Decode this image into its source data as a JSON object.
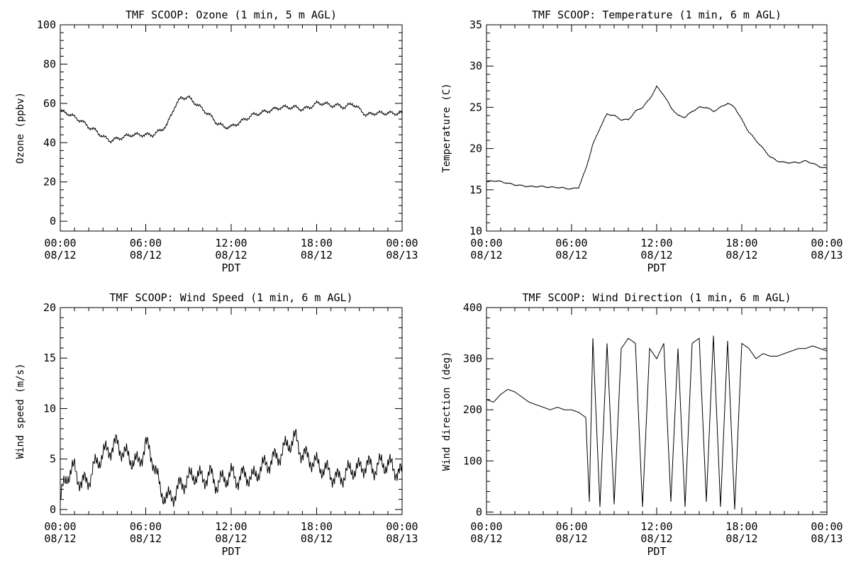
{
  "chart_data": [
    {
      "type": "line",
      "title": "TMF SCOOP: Ozone (1 min, 5 m AGL)",
      "ylabel": "Ozone (ppbv)",
      "xlabel": "PDT",
      "ylim": [
        -5,
        100
      ],
      "yticks": [
        0,
        20,
        40,
        60,
        80,
        100
      ],
      "xlim": [
        "2024-08-12 00:00",
        "2024-08-13 00:00"
      ],
      "xticks": [
        {
          "time": "00:00",
          "date": "08/12"
        },
        {
          "time": "06:00",
          "date": "08/12"
        },
        {
          "time": "12:00",
          "date": "08/12"
        },
        {
          "time": "18:00",
          "date": "08/12"
        },
        {
          "time": "00:00",
          "date": "08/13"
        }
      ],
      "series": [
        {
          "x_hours": [
            0,
            0.5,
            1,
            1.5,
            2,
            2.5,
            3,
            3.5,
            4,
            4.5,
            5,
            5.5,
            6,
            6.5,
            7,
            7.5,
            8,
            8.5,
            9,
            9.5,
            10,
            10.5,
            11,
            11.5,
            12,
            12.5,
            13,
            13.5,
            14,
            14.5,
            15,
            15.5,
            16,
            16.5,
            17,
            17.5,
            18,
            18.5,
            19,
            19.5,
            20,
            20.5,
            21,
            21.5,
            22,
            22.5,
            23,
            23.5,
            24
          ],
          "values": [
            56,
            55,
            53,
            51,
            48,
            46,
            43,
            41,
            42,
            43,
            44,
            44,
            44,
            44,
            46,
            49,
            58,
            63,
            63,
            60,
            57,
            54,
            50,
            48,
            48,
            50,
            52,
            54,
            55,
            56,
            57,
            58,
            58,
            58,
            57,
            58,
            60,
            60,
            59,
            59,
            58,
            60,
            57,
            54,
            55,
            55,
            55,
            55,
            55
          ]
        }
      ]
    },
    {
      "type": "line",
      "title": "TMF SCOOP: Temperature (1 min, 6 m AGL)",
      "ylabel": "Temperature (C)",
      "xlabel": "PDT",
      "ylim": [
        10,
        35
      ],
      "yticks": [
        10,
        15,
        20,
        25,
        30,
        35
      ],
      "xlim": [
        "2024-08-12 00:00",
        "2024-08-13 00:00"
      ],
      "xticks": [
        {
          "time": "00:00",
          "date": "08/12"
        },
        {
          "time": "06:00",
          "date": "08/12"
        },
        {
          "time": "12:00",
          "date": "08/12"
        },
        {
          "time": "18:00",
          "date": "08/12"
        },
        {
          "time": "00:00",
          "date": "08/13"
        }
      ],
      "series": [
        {
          "x_hours": [
            0,
            0.5,
            1,
            1.5,
            2,
            2.5,
            3,
            3.5,
            4,
            4.5,
            5,
            5.5,
            6,
            6.5,
            7,
            7.5,
            8,
            8.5,
            9,
            9.5,
            10,
            10.5,
            11,
            11.5,
            12,
            12.5,
            13,
            13.5,
            14,
            14.5,
            15,
            15.5,
            16,
            16.5,
            17,
            17.5,
            18,
            18.5,
            19,
            19.5,
            20,
            20.5,
            21,
            21.5,
            22,
            22.5,
            23,
            23.5,
            24
          ],
          "values": [
            16.0,
            16.1,
            16.0,
            15.8,
            15.6,
            15.5,
            15.4,
            15.4,
            15.4,
            15.3,
            15.3,
            15.2,
            15.1,
            15.3,
            17.5,
            20.5,
            22.5,
            24.2,
            24.0,
            23.5,
            23.5,
            24.5,
            25.0,
            26.0,
            27.5,
            26.5,
            25.0,
            24.0,
            23.8,
            24.5,
            25.0,
            25.0,
            24.5,
            25.0,
            25.5,
            25.0,
            23.5,
            22.0,
            21.0,
            20.0,
            19.0,
            18.5,
            18.3,
            18.3,
            18.3,
            18.5,
            18.2,
            17.8,
            17.6
          ]
        }
      ]
    },
    {
      "type": "line",
      "title": "TMF SCOOP: Wind Speed (1 min, 6 m AGL)",
      "ylabel": "Wind speed (m/s)",
      "xlabel": "PDT",
      "ylim": [
        -0.5,
        20
      ],
      "yticks": [
        0,
        5,
        10,
        15,
        20
      ],
      "xlim": [
        "2024-08-12 00:00",
        "2024-08-13 00:00"
      ],
      "xticks": [
        {
          "time": "00:00",
          "date": "08/12"
        },
        {
          "time": "06:00",
          "date": "08/12"
        },
        {
          "time": "12:00",
          "date": "08/12"
        },
        {
          "time": "18:00",
          "date": "08/12"
        },
        {
          "time": "00:00",
          "date": "08/13"
        }
      ],
      "series": [
        {
          "x_hours": [
            0,
            0.5,
            1,
            1.5,
            2,
            2.5,
            3,
            3.5,
            4,
            4.5,
            5,
            5.5,
            6,
            6.5,
            7,
            7.5,
            8,
            8.5,
            9,
            9.5,
            10,
            10.5,
            11,
            11.5,
            12,
            12.5,
            13,
            13.5,
            14,
            14.5,
            15,
            15.5,
            16,
            16.5,
            17,
            17.5,
            18,
            18.5,
            19,
            19.5,
            20,
            20.5,
            21,
            21.5,
            22,
            22.5,
            23,
            23.5,
            24
          ],
          "values": [
            1.0,
            3.5,
            4.0,
            2.5,
            3.0,
            4.5,
            5.5,
            6.0,
            6.5,
            5.5,
            5.0,
            4.5,
            6.5,
            5.0,
            2.0,
            1.0,
            1.5,
            2.5,
            3.0,
            3.5,
            3.0,
            3.5,
            2.5,
            3.0,
            3.5,
            3.0,
            3.5,
            3.0,
            4.0,
            4.5,
            5.0,
            5.5,
            6.5,
            7.0,
            5.5,
            5.0,
            4.5,
            4.0,
            3.5,
            3.0,
            3.5,
            4.0,
            4.0,
            4.5,
            4.0,
            4.5,
            4.5,
            4.0,
            3.5
          ]
        }
      ]
    },
    {
      "type": "line",
      "title": "TMF SCOOP: Wind Direction (1 min, 6 m AGL)",
      "ylabel": "Wind direction (deg)",
      "xlabel": "PDT",
      "ylim": [
        -5,
        400
      ],
      "yticks": [
        0,
        100,
        200,
        300,
        400
      ],
      "xlim": [
        "2024-08-12 00:00",
        "2024-08-13 00:00"
      ],
      "xticks": [
        {
          "time": "00:00",
          "date": "08/12"
        },
        {
          "time": "06:00",
          "date": "08/12"
        },
        {
          "time": "12:00",
          "date": "08/12"
        },
        {
          "time": "18:00",
          "date": "08/12"
        },
        {
          "time": "00:00",
          "date": "08/13"
        }
      ],
      "series": [
        {
          "x_hours": [
            0,
            0.5,
            1,
            1.5,
            2,
            2.5,
            3,
            3.5,
            4,
            4.5,
            5,
            5.5,
            6,
            6.5,
            7,
            7.25,
            7.5,
            8,
            8.5,
            9,
            9.5,
            10,
            10.5,
            11,
            11.5,
            12,
            12.5,
            13,
            13.5,
            14,
            14.5,
            15,
            15.5,
            16,
            16.5,
            17,
            17.5,
            18,
            18.5,
            19,
            19.5,
            20,
            20.5,
            21,
            21.5,
            22,
            22.5,
            23,
            23.5,
            24
          ],
          "values": [
            220,
            215,
            230,
            240,
            235,
            225,
            215,
            210,
            205,
            200,
            205,
            200,
            200,
            195,
            185,
            20,
            340,
            10,
            330,
            15,
            320,
            340,
            330,
            10,
            320,
            300,
            330,
            20,
            320,
            10,
            330,
            340,
            20,
            345,
            10,
            335,
            5,
            330,
            320,
            300,
            310,
            305,
            305,
            310,
            315,
            320,
            320,
            325,
            320,
            315
          ]
        }
      ]
    }
  ]
}
